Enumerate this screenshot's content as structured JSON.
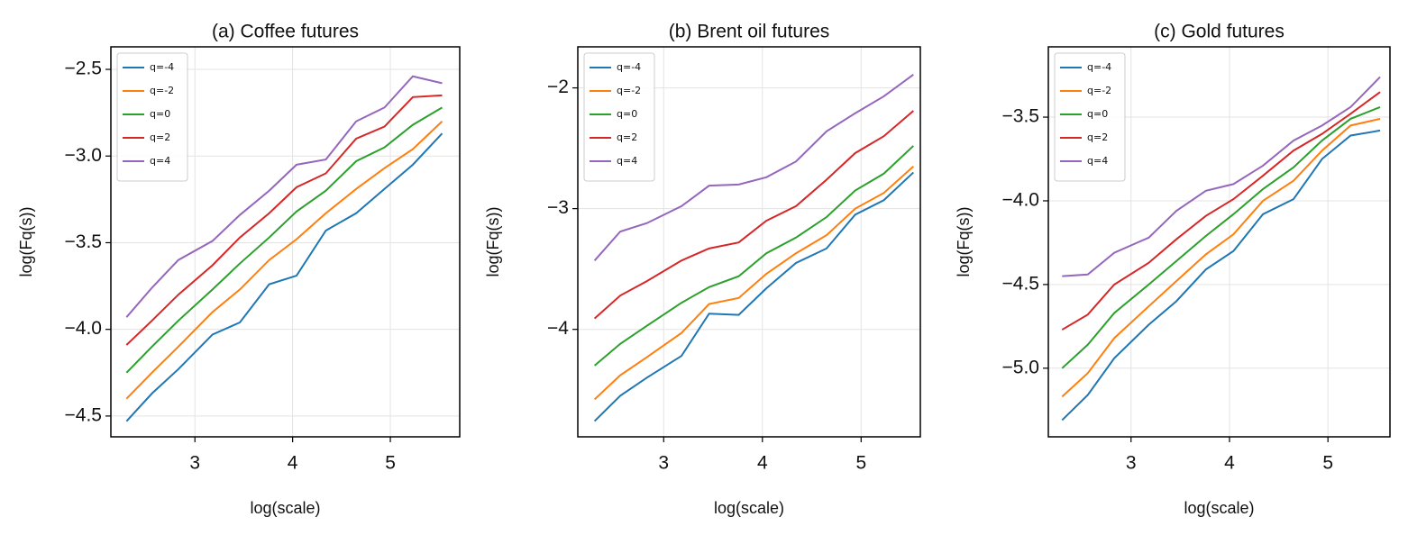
{
  "chart_data": [
    {
      "type": "line",
      "title": "(a) Coffee futures",
      "xlabel": "log(scale)",
      "ylabel": "log(Fq(s))",
      "x": [
        2.3,
        2.56,
        2.83,
        3.18,
        3.46,
        3.76,
        4.04,
        4.34,
        4.65,
        4.94,
        5.23,
        5.53
      ],
      "series": [
        {
          "name": "q=-4",
          "color": "#1f77b4",
          "values": [
            -4.53,
            -4.37,
            -4.23,
            -4.03,
            -3.96,
            -3.74,
            -3.69,
            -3.43,
            -3.33,
            -3.19,
            -3.05,
            -2.87
          ]
        },
        {
          "name": "q=-2",
          "color": "#ff7f0e",
          "values": [
            -4.4,
            -4.25,
            -4.1,
            -3.9,
            -3.77,
            -3.6,
            -3.48,
            -3.33,
            -3.19,
            -3.07,
            -2.96,
            -2.8
          ]
        },
        {
          "name": "q=0",
          "color": "#2ca02c",
          "values": [
            -4.25,
            -4.1,
            -3.95,
            -3.77,
            -3.62,
            -3.47,
            -3.32,
            -3.2,
            -3.03,
            -2.95,
            -2.82,
            -2.72
          ]
        },
        {
          "name": "q=2",
          "color": "#d62728",
          "values": [
            -4.09,
            -3.95,
            -3.8,
            -3.63,
            -3.47,
            -3.33,
            -3.18,
            -3.1,
            -2.9,
            -2.83,
            -2.66,
            -2.65
          ]
        },
        {
          "name": "q=4",
          "color": "#9467bd",
          "values": [
            -3.93,
            -3.76,
            -3.6,
            -3.49,
            -3.34,
            -3.2,
            -3.05,
            -3.02,
            -2.8,
            -2.72,
            -2.54,
            -2.58
          ]
        }
      ],
      "xlim": [
        2.14,
        5.71
      ],
      "ylim": [
        -4.62,
        -2.37
      ],
      "xticks": [
        3,
        4,
        5
      ],
      "yticks": [
        {
          "value": -4.5,
          "label": "−4.5"
        },
        {
          "value": -4.0,
          "label": "−4.0"
        },
        {
          "value": -3.5,
          "label": "−3.5"
        },
        {
          "value": -3.0,
          "label": "−3.0"
        },
        {
          "value": -2.5,
          "label": "−2.5"
        }
      ],
      "grid": true,
      "legend": "upper left"
    },
    {
      "type": "line",
      "title": "(b) Brent oil futures",
      "xlabel": "log(scale)",
      "ylabel": "log(Fq(s))",
      "x": [
        2.3,
        2.56,
        2.83,
        3.18,
        3.46,
        3.76,
        4.04,
        4.34,
        4.65,
        4.94,
        5.23,
        5.53
      ],
      "series": [
        {
          "name": "q=-4",
          "color": "#1f77b4",
          "values": [
            -4.76,
            -4.55,
            -4.4,
            -4.22,
            -3.87,
            -3.88,
            -3.66,
            -3.45,
            -3.33,
            -3.05,
            -2.93,
            -2.7
          ]
        },
        {
          "name": "q=-2",
          "color": "#ff7f0e",
          "values": [
            -4.58,
            -4.38,
            -4.23,
            -4.03,
            -3.79,
            -3.74,
            -3.54,
            -3.37,
            -3.22,
            -3.0,
            -2.87,
            -2.65
          ]
        },
        {
          "name": "q=0",
          "color": "#2ca02c",
          "values": [
            -4.3,
            -4.12,
            -3.97,
            -3.78,
            -3.65,
            -3.56,
            -3.37,
            -3.24,
            -3.07,
            -2.85,
            -2.71,
            -2.48
          ]
        },
        {
          "name": "q=2",
          "color": "#d62728",
          "values": [
            -3.91,
            -3.72,
            -3.6,
            -3.43,
            -3.33,
            -3.28,
            -3.1,
            -2.98,
            -2.76,
            -2.54,
            -2.4,
            -2.19
          ]
        },
        {
          "name": "q=4",
          "color": "#9467bd",
          "values": [
            -3.43,
            -3.19,
            -3.12,
            -2.98,
            -2.81,
            -2.8,
            -2.74,
            -2.61,
            -2.36,
            -2.21,
            -2.07,
            -1.89
          ]
        }
      ],
      "xlim": [
        2.13,
        5.6
      ],
      "ylim": [
        -4.89,
        -1.66
      ],
      "xticks": [
        3,
        4,
        5
      ],
      "yticks": [
        {
          "value": -4,
          "label": "−4"
        },
        {
          "value": -3,
          "label": "−3"
        },
        {
          "value": -2,
          "label": "−2"
        }
      ],
      "grid": true,
      "legend": "upper left"
    },
    {
      "type": "line",
      "title": "(c) Gold futures",
      "xlabel": "log(scale)",
      "ylabel": "log(Fq(s))",
      "x": [
        2.3,
        2.56,
        2.83,
        3.18,
        3.46,
        3.76,
        4.04,
        4.34,
        4.65,
        4.94,
        5.23,
        5.53
      ],
      "series": [
        {
          "name": "q=-4",
          "color": "#1f77b4",
          "values": [
            -5.31,
            -5.16,
            -4.94,
            -4.74,
            -4.6,
            -4.41,
            -4.3,
            -4.08,
            -3.99,
            -3.75,
            -3.61,
            -3.58
          ]
        },
        {
          "name": "q=-2",
          "color": "#ff7f0e",
          "values": [
            -5.17,
            -5.03,
            -4.82,
            -4.63,
            -4.48,
            -4.32,
            -4.2,
            -4.0,
            -3.88,
            -3.7,
            -3.55,
            -3.51
          ]
        },
        {
          "name": "q=0",
          "color": "#2ca02c",
          "values": [
            -5.0,
            -4.86,
            -4.67,
            -4.5,
            -4.36,
            -4.21,
            -4.08,
            -3.93,
            -3.8,
            -3.64,
            -3.51,
            -3.44
          ]
        },
        {
          "name": "q=2",
          "color": "#d62728",
          "values": [
            -4.77,
            -4.68,
            -4.5,
            -4.37,
            -4.23,
            -4.09,
            -3.99,
            -3.85,
            -3.7,
            -3.6,
            -3.48,
            -3.35
          ]
        },
        {
          "name": "q=4",
          "color": "#9467bd",
          "values": [
            -4.45,
            -4.44,
            -4.31,
            -4.22,
            -4.06,
            -3.94,
            -3.9,
            -3.79,
            -3.64,
            -3.55,
            -3.44,
            -3.26
          ]
        }
      ],
      "xlim": [
        2.16,
        5.63
      ],
      "ylim": [
        -5.41,
        -3.08
      ],
      "xticks": [
        3,
        4,
        5
      ],
      "yticks": [
        {
          "value": -5.0,
          "label": "−5.0"
        },
        {
          "value": -4.5,
          "label": "−4.5"
        },
        {
          "value": -4.0,
          "label": "−4.0"
        },
        {
          "value": -3.5,
          "label": "−3.5"
        }
      ],
      "grid": true,
      "legend": "upper left"
    }
  ]
}
